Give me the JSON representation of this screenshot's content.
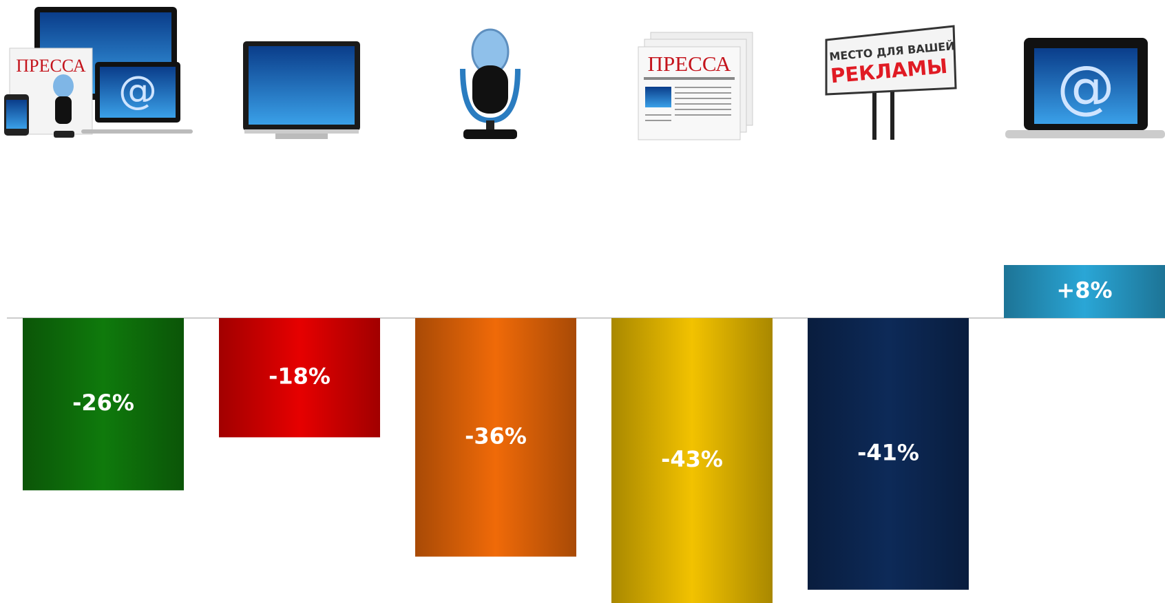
{
  "chart_data": {
    "type": "bar",
    "categories": [
      null,
      null,
      null,
      null,
      null,
      null
    ],
    "values": [
      -26,
      -18,
      -36,
      -43,
      -41,
      8
    ],
    "value_labels": [
      "-26%",
      "-18%",
      "-36%",
      "-43%",
      "-41%",
      "+8%"
    ],
    "colors": [
      "#0f7a0c",
      "#e60000",
      "#f06a08",
      "#f2c200",
      "#0d2a58",
      "#2aa6d6"
    ],
    "ylim": [
      -43,
      8
    ],
    "annotations": [
      "ПРЕССА",
      "@",
      "ПРЕССА",
      "МЕСТО ДЛЯ ВАШЕЙ",
      "РЕКЛАМЫ",
      "@"
    ]
  }
}
